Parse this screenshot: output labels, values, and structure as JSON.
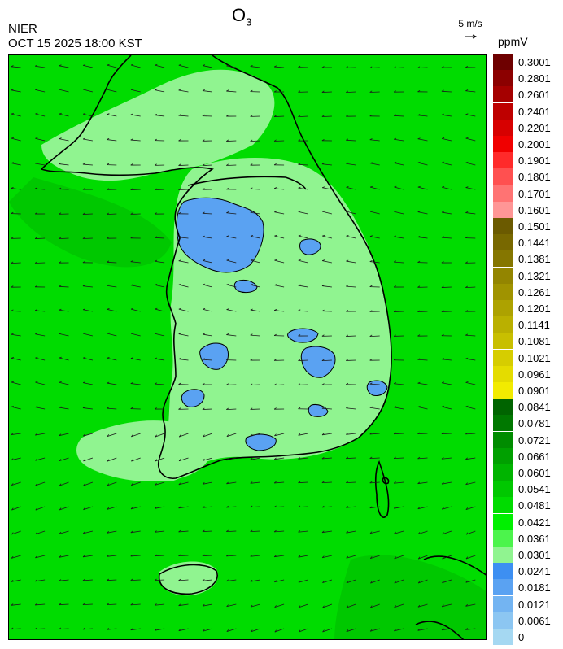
{
  "header": {
    "title_main": "O",
    "title_sub": "3",
    "agency": "NIER",
    "datetime": "OCT 15 2025 18:00 KST",
    "wind_reference": "5 m/s",
    "unit": "ppmV"
  },
  "legend": {
    "labels": [
      "0.3001",
      "0.2801",
      "0.2601",
      "0.2401",
      "0.2201",
      "0.2001",
      "0.1901",
      "0.1801",
      "0.1701",
      "0.1601",
      "0.1501",
      "0.1441",
      "0.1381",
      "0.1321",
      "0.1261",
      "0.1201",
      "0.1141",
      "0.1081",
      "0.1021",
      "0.0961",
      "0.0901",
      "0.0841",
      "0.0781",
      "0.0721",
      "0.0661",
      "0.0601",
      "0.0541",
      "0.0481",
      "0.0421",
      "0.0361",
      "0.0301",
      "0.0241",
      "0.0181",
      "0.0121",
      "0.0061",
      "0"
    ],
    "colors": [
      "#6e0000",
      "#8c0000",
      "#a50000",
      "#be0000",
      "#d70000",
      "#f00000",
      "#ff2a2a",
      "#ff5050",
      "#ff7373",
      "#ff9696",
      "#6b5a00",
      "#786800",
      "#857600",
      "#938500",
      "#a09300",
      "#ada200",
      "#bab000",
      "#c8bf00",
      "#d6cd00",
      "#e4dc00",
      "#f2eb00",
      "#006400",
      "#007800",
      "#008c00",
      "#00a000",
      "#00b400",
      "#00c800",
      "#00dc00",
      "#00f000",
      "#4cf44c",
      "#90f490",
      "#3d8ff2",
      "#5aa2f2",
      "#73b4f2",
      "#8cc6f2",
      "#a5d8f2"
    ]
  },
  "map": {
    "background_color": "#00dc00",
    "ocean_dark_color": "#00c800",
    "light_color": "#90f490",
    "blue_color": "#5aa2f2",
    "coast_color": "#000000",
    "vectors": {
      "cols": 20,
      "rows": 24,
      "dominant_direction": "west"
    }
  }
}
